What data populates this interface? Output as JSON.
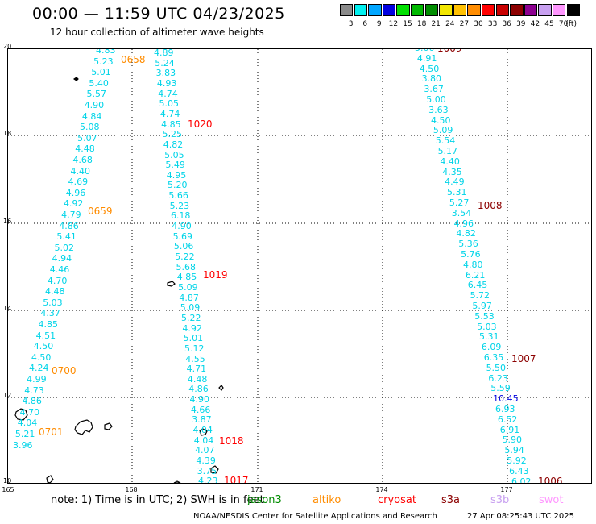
{
  "title": "00:00 — 11:59 UTC 04/23/2025",
  "subtitle": "12 hour collection of altimeter wave heights",
  "legend": {
    "unit": "(ft)",
    "bins": [
      {
        "label": "3",
        "color": "#8a8a8a"
      },
      {
        "label": "6",
        "color": "#00f0f0"
      },
      {
        "label": "9",
        "color": "#00a6ff"
      },
      {
        "label": "12",
        "color": "#0000e0"
      },
      {
        "label": "15",
        "color": "#00e000"
      },
      {
        "label": "18",
        "color": "#00b800"
      },
      {
        "label": "21",
        "color": "#008c00"
      },
      {
        "label": "24",
        "color": "#f2e600"
      },
      {
        "label": "27",
        "color": "#ffc000"
      },
      {
        "label": "30",
        "color": "#ff8c00"
      },
      {
        "label": "33",
        "color": "#ff0000"
      },
      {
        "label": "36",
        "color": "#c80000"
      },
      {
        "label": "39",
        "color": "#8c0000"
      },
      {
        "label": "42",
        "color": "#8c0090"
      },
      {
        "label": "45",
        "color": "#c8a0f0"
      },
      {
        "label": "70",
        "color": "#ff96ff"
      },
      {
        "label": "",
        "color": "#000000"
      }
    ]
  },
  "map": {
    "lat_labels": [
      "20",
      "18",
      "16",
      "14",
      "12",
      "10"
    ],
    "lon_labels": [
      "165",
      "168",
      "171",
      "174",
      "177"
    ],
    "tracks": [
      {
        "name": "track-1",
        "pass_label": "0658",
        "pass_color": "#ff8c00",
        "values": [
          "4.83",
          "5.23",
          "5.01",
          "5.40",
          "5.57",
          "4.90",
          "4.84",
          "5.08",
          "5.07",
          "4.48",
          "4.68",
          "4.40",
          "4.69",
          "4.96",
          "4.92",
          "4.79",
          "4.86",
          "5.41",
          "5.02",
          "4.94",
          "4.46",
          "4.70",
          "4.48",
          "5.03",
          "4.37",
          "4.85",
          "4.51",
          "4.50",
          "4.50",
          "4.24",
          "4.99",
          "4.73",
          "4.86",
          "4.70",
          "4.04",
          "5.21",
          "3.96"
        ]
      },
      {
        "name": "track-2",
        "pass_label": "1020",
        "pass_color": "#ff0000",
        "values": [
          "4.89",
          "5.24",
          "3.83",
          "4.93",
          "4.74",
          "5.05",
          "4.74",
          "4.85",
          "5.25",
          "4.82",
          "5.05",
          "5.49",
          "4.95",
          "5.20",
          "5.66",
          "5.23",
          "6.18",
          "4.90",
          "5.69",
          "5.06",
          "5.22",
          "5.68",
          "4.85",
          "5.09",
          "4.87",
          "5.09",
          "5.22",
          "4.92",
          "5.01",
          "5.12",
          "4.55",
          "4.71",
          "4.48",
          "4.86",
          "4.90",
          "4.66",
          "3.87",
          "4.04",
          "4.04",
          "4.07",
          "4.39",
          "3.75",
          "4.23"
        ]
      },
      {
        "name": "track-3",
        "pass_label": "1009",
        "pass_color": "#8c0000",
        "values": [
          "5.00",
          "4.91",
          "4.50",
          "3.80",
          "3.67",
          "5.00",
          "3.63",
          "4.50",
          "5.09",
          "5.54",
          "5.17",
          "4.40",
          "4.35",
          "4.49",
          "5.31",
          "5.27",
          "3.54",
          "4.96",
          "4.82",
          "5.36",
          "5.76",
          "4.80",
          "6.21",
          "6.45",
          "5.72",
          "5.97",
          "5.53",
          "5.03",
          "5.31",
          "6.09",
          "6.35",
          "5.50",
          "6.23",
          "5.59",
          "10.45",
          "6.93",
          "6.52",
          "6.91",
          "5.90",
          "5.94",
          "5.92",
          "6.43",
          "6.02"
        ]
      }
    ],
    "pass_labels": [
      {
        "text": "0658",
        "color": "#ff8c00"
      },
      {
        "text": "0659",
        "color": "#ff8c00"
      },
      {
        "text": "0700",
        "color": "#ff8c00"
      },
      {
        "text": "0701",
        "color": "#ff8c00"
      },
      {
        "text": "1020",
        "color": "#ff0000"
      },
      {
        "text": "1019",
        "color": "#ff0000"
      },
      {
        "text": "1018",
        "color": "#ff0000"
      },
      {
        "text": "1017",
        "color": "#ff0000"
      },
      {
        "text": "1009",
        "color": "#8c0000"
      },
      {
        "text": "1008",
        "color": "#8c0000"
      },
      {
        "text": "1007",
        "color": "#8c0000"
      },
      {
        "text": "1006",
        "color": "#8c0000"
      }
    ]
  },
  "footer": {
    "note": "note:  1) Time is in UTC; 2) SWH is in feet",
    "satellites": [
      {
        "name": "jason3",
        "color": "#008c00"
      },
      {
        "name": "altiko",
        "color": "#ff8c00"
      },
      {
        "name": "cryosat",
        "color": "#ff0000"
      },
      {
        "name": "s3a",
        "color": "#8c0000"
      },
      {
        "name": "s3b",
        "color": "#c8a0f0"
      },
      {
        "name": "swot",
        "color": "#ff96ff"
      }
    ],
    "credit": "NOAA/NESDIS Center for Satellite Applications and Research",
    "timestamp": "27 Apr 08:25:43 UTC 2025"
  }
}
